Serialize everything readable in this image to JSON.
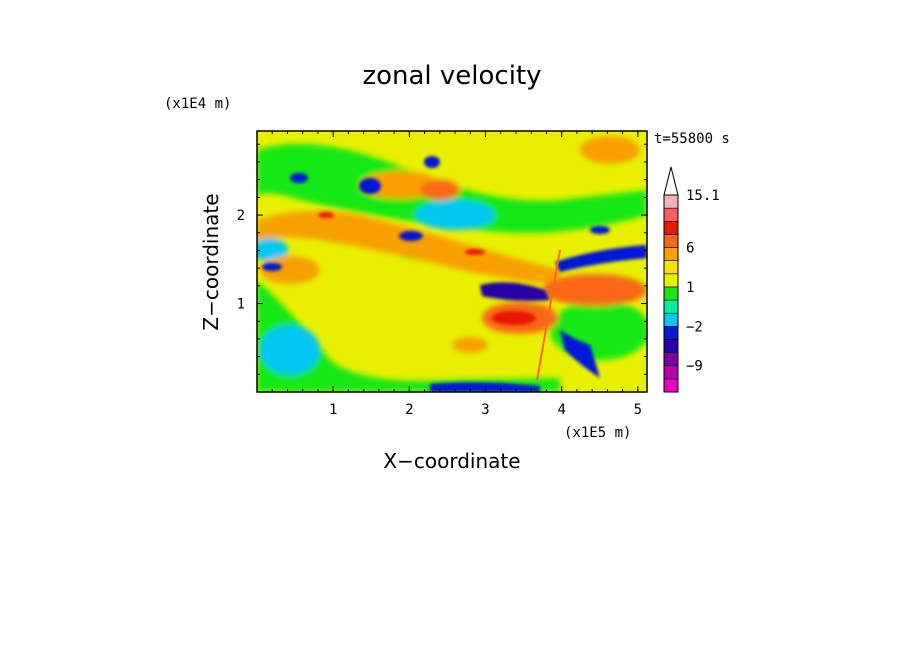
{
  "chart_data": {
    "type": "heatmap",
    "title": "zonal velocity",
    "xlabel": "X−coordinate",
    "ylabel": "Z−coordinate",
    "x_unit": "(x1E5 m)",
    "y_unit": "(x1E4 m)",
    "time_label": "t=55800 s",
    "xlim": [
      0.0,
      5.12
    ],
    "ylim": [
      0.0,
      2.95
    ],
    "x_ticks": [
      1,
      2,
      3,
      4,
      5
    ],
    "y_ticks": [
      1,
      2
    ],
    "grid": false,
    "colorbar": {
      "levels": [
        -15,
        -12,
        -9,
        -6,
        -4,
        -2,
        -1,
        0,
        1,
        2,
        4,
        6,
        9,
        12,
        15.1
      ],
      "colors": [
        "#e800c8",
        "#b800a8",
        "#7a00a0",
        "#2800a8",
        "#0018d8",
        "#00c8f0",
        "#00f0a0",
        "#18e818",
        "#e8f000",
        "#f8e000",
        "#f8a000",
        "#f86818",
        "#e81800",
        "#f86060",
        "#f8b0b0"
      ],
      "labels": [
        "15.1",
        "6",
        "1",
        "−2",
        "−9"
      ],
      "label_values": [
        15.1,
        6,
        1,
        -2,
        -9
      ]
    }
  }
}
